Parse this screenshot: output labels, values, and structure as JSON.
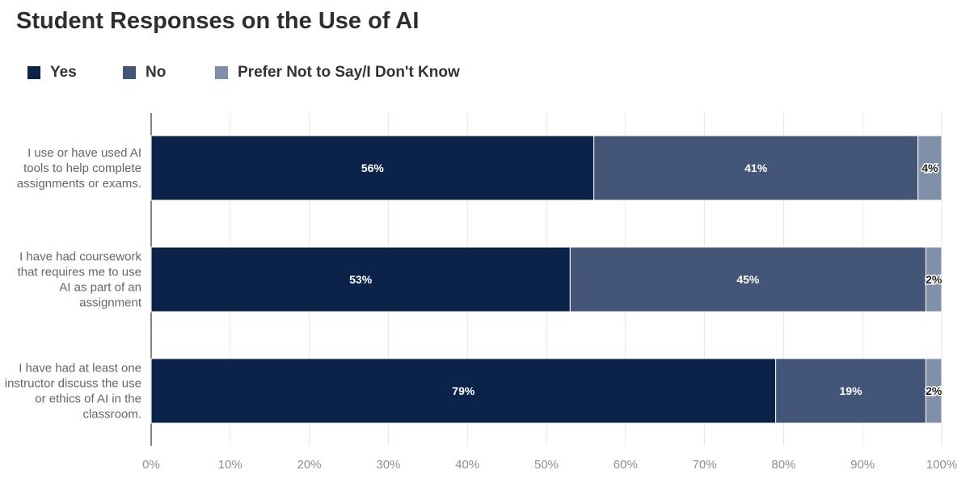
{
  "chart_data": {
    "type": "bar",
    "orientation": "horizontal",
    "stacked": true,
    "title": "Student Responses on the Use of AI",
    "categories": [
      [
        "I use or have used AI",
        "tools to help complete",
        "assignments or exams."
      ],
      [
        "I have had coursework",
        "that requires me to use",
        "AI as part of an",
        "assignment"
      ],
      [
        "I have had at least one",
        "instructor discuss the use",
        "or ethics of AI in the",
        "classroom."
      ]
    ],
    "series": [
      {
        "name": "Yes",
        "color": "#0b2249",
        "values": [
          56,
          53,
          79
        ],
        "labels": [
          "56%",
          "53%",
          "79%"
        ]
      },
      {
        "name": "No",
        "color": "#445677",
        "values": [
          41,
          45,
          19
        ],
        "labels": [
          "41%",
          "45%",
          "19%"
        ]
      },
      {
        "name": "Prefer Not to Say/I Don't Know",
        "color": "#8190a9",
        "values": [
          4,
          2,
          2
        ],
        "labels": [
          "4%",
          "2%",
          "2%"
        ]
      }
    ],
    "xlim": [
      0,
      100
    ],
    "xticks": [
      "0%",
      "10%",
      "20%",
      "30%",
      "40%",
      "50%",
      "60%",
      "70%",
      "80%",
      "90%",
      "100%"
    ],
    "xlabel": "",
    "ylabel": "",
    "grid": true,
    "legend_position": "top-left"
  }
}
